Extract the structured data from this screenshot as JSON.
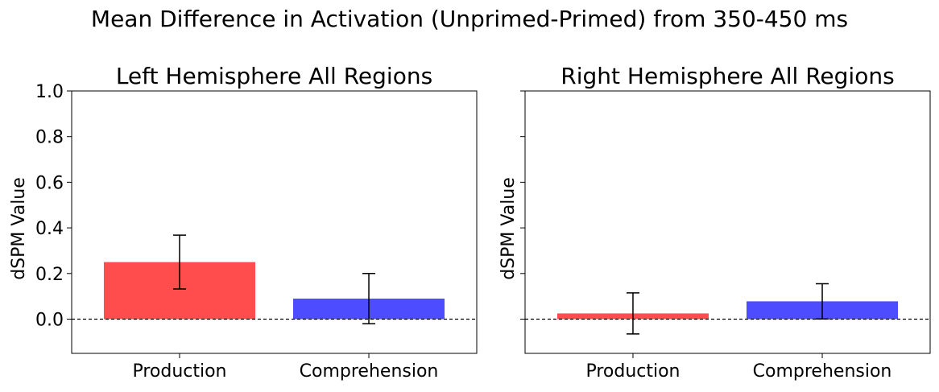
{
  "figure": {
    "suptitle": "Mean Difference in Activation (Unprimed-Primed) from 350-450 ms"
  },
  "chart_data": [
    {
      "type": "bar",
      "title": "Left Hemisphere All Regions",
      "xlabel": "",
      "ylabel": "dSPM Value",
      "categories": [
        "Production",
        "Comprehension"
      ],
      "values": [
        0.25,
        0.09
      ],
      "errors": [
        0.118,
        0.11
      ],
      "colors": [
        "#ff4d4d",
        "#4d4dff"
      ],
      "ylim": [
        -0.15,
        1.0
      ],
      "yticks": [
        "0.0",
        "0.2",
        "0.4",
        "0.6",
        "0.8",
        "1.0"
      ],
      "zero_line": "dashed",
      "grid": false,
      "legend": "none"
    },
    {
      "type": "bar",
      "title": "Right Hemisphere All Regions",
      "xlabel": "",
      "ylabel": "dSPM Value",
      "categories": [
        "Production",
        "Comprehension"
      ],
      "values": [
        0.025,
        0.078
      ],
      "errors": [
        0.09,
        0.077
      ],
      "colors": [
        "#ff4d4d",
        "#4d4dff"
      ],
      "ylim": [
        -0.15,
        1.0
      ],
      "yticks": [],
      "zero_line": "dashed",
      "grid": false,
      "legend": "none"
    }
  ]
}
